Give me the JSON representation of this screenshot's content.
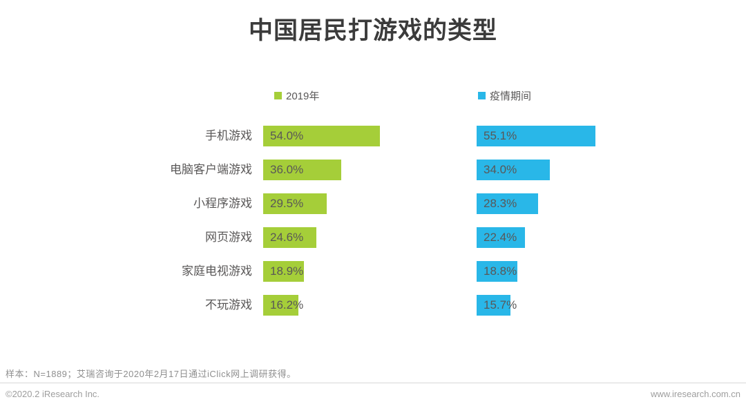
{
  "title": "中国居民打游戏的类型",
  "legend": [
    {
      "label": "2019年",
      "color": "#a5ce39"
    },
    {
      "label": "疫情期间",
      "color": "#29b7e8"
    }
  ],
  "footer": {
    "note": "样本：N=1889；艾瑞咨询于2020年2月17日通过iClick网上调研获得。",
    "copyright": "©2020.2 iResearch Inc.",
    "website": "www.iresearch.com.cn"
  },
  "chart_data": {
    "type": "bar",
    "orientation": "horizontal",
    "title": "中国居民打游戏的类型",
    "categories": [
      "手机游戏",
      "电脑客户端游戏",
      "小程序游戏",
      "网页游戏",
      "家庭电视游戏",
      "不玩游戏"
    ],
    "series": [
      {
        "name": "2019年",
        "color": "#a5ce39",
        "values": [
          54.0,
          36.0,
          29.5,
          24.6,
          18.9,
          16.2
        ]
      },
      {
        "name": "疫情期间",
        "color": "#29b7e8",
        "values": [
          55.1,
          34.0,
          28.3,
          22.4,
          18.8,
          15.7
        ]
      }
    ],
    "value_suffix": "%",
    "xlim": [
      0,
      100
    ],
    "grid": false,
    "legend_position": "top"
  }
}
